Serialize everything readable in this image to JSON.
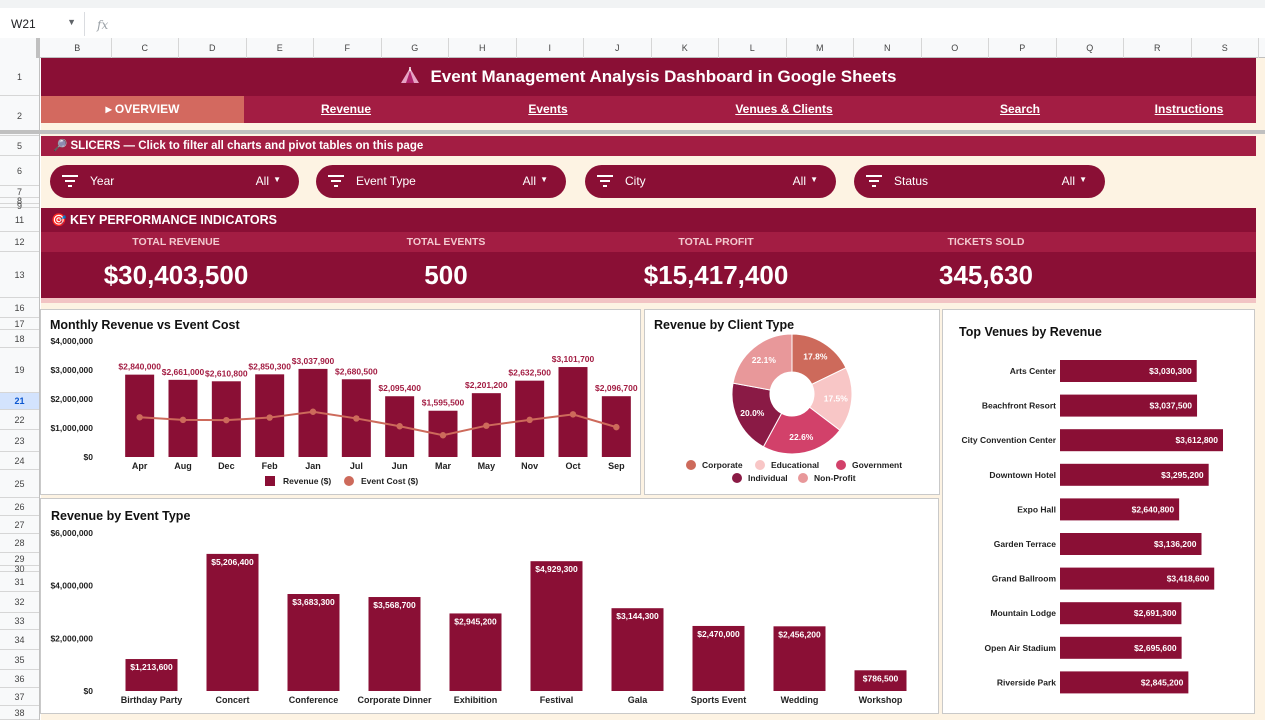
{
  "formula_bar": {
    "cell_ref": "W21",
    "fx_label": "fx"
  },
  "columns": [
    "B",
    "C",
    "D",
    "E",
    "F",
    "G",
    "H",
    "I",
    "J",
    "K",
    "L",
    "M",
    "N",
    "O",
    "P",
    "Q",
    "R",
    "S"
  ],
  "rows": [
    "1",
    "2",
    "5",
    "6",
    "7",
    "8",
    "9",
    "11",
    "12",
    "13",
    "16",
    "17",
    "18",
    "19",
    "21",
    "22",
    "23",
    "24",
    "25",
    "26",
    "27",
    "28",
    "29",
    "30",
    "31",
    "32",
    "33",
    "34",
    "35",
    "36",
    "37",
    "38"
  ],
  "selected_row": "21",
  "title": "Event Management Analysis Dashboard in Google Sheets",
  "nav": {
    "tabs": [
      {
        "label": "▸  OVERVIEW",
        "active": true
      },
      {
        "label": "Revenue"
      },
      {
        "label": "Events"
      },
      {
        "label": "Venues & Clients"
      },
      {
        "label": "Search"
      },
      {
        "label": "Instructions"
      }
    ]
  },
  "slicers": {
    "header": "SLICERS — Click to filter all charts and pivot tables on this page",
    "items": [
      {
        "label": "Year",
        "value": "All"
      },
      {
        "label": "Event Type",
        "value": "All"
      },
      {
        "label": "City",
        "value": "All"
      },
      {
        "label": "Status",
        "value": "All"
      }
    ]
  },
  "kpi": {
    "header": "KEY PERFORMANCE INDICATORS",
    "items": [
      {
        "label": "TOTAL REVENUE",
        "value": "$30,403,500"
      },
      {
        "label": "TOTAL EVENTS",
        "value": "500"
      },
      {
        "label": "TOTAL PROFIT",
        "value": "$15,417,400"
      },
      {
        "label": "TICKETS SOLD",
        "value": "345,630"
      }
    ]
  },
  "colors": {
    "primary": "#8a0f35",
    "secondary": "#a31d43",
    "accent": "#d3695f",
    "background": "#fdf3e3"
  },
  "chart_data": [
    {
      "type": "bar",
      "title": "Monthly Revenue vs Event Cost",
      "categories": [
        "Apr",
        "Aug",
        "Dec",
        "Feb",
        "Jan",
        "Jul",
        "Jun",
        "Mar",
        "May",
        "Nov",
        "Oct",
        "Sep"
      ],
      "series": [
        {
          "name": "Revenue ($)",
          "values": [
            2840000,
            2661000,
            2610800,
            2850300,
            3037900,
            2680500,
            2095400,
            1595500,
            2201200,
            2632500,
            3101700,
            2096700
          ],
          "labels": [
            "$2,840,000",
            "$2,661,000",
            "$2,610,800",
            "$2,850,300",
            "$3,037,900",
            "$2,680,500",
            "$2,095,400",
            "$1,595,500",
            "$2,201,200",
            "$2,632,500",
            "$3,101,700",
            "$2,096,700"
          ]
        },
        {
          "name": "Event Cost ($)",
          "type": "line",
          "values": [
            1370000,
            1280000,
            1270000,
            1360000,
            1560000,
            1330000,
            1060000,
            750000,
            1080000,
            1280000,
            1470000,
            1030000
          ]
        }
      ],
      "yticks": [
        "$4,000,000",
        "$3,000,000",
        "$2,000,000",
        "$1,000,000",
        "$0"
      ],
      "ylim": [
        0,
        4000000
      ]
    },
    {
      "type": "pie",
      "title": "Revenue by Client Type",
      "slices": [
        {
          "name": "Corporate",
          "value": 17.8,
          "label": "17.8%",
          "color": "#cd6a5b"
        },
        {
          "name": "Educational",
          "value": 17.5,
          "label": "17.5%",
          "color": "#f8c6c6"
        },
        {
          "name": "Government",
          "value": 22.6,
          "label": "22.6%",
          "color": "#d2416a"
        },
        {
          "name": "Individual",
          "value": 20.0,
          "label": "20.0%",
          "color": "#8a1a45"
        },
        {
          "name": "Non-Profit",
          "value": 22.1,
          "label": "22.1%",
          "color": "#e8989a"
        }
      ]
    },
    {
      "type": "bar",
      "title": "Revenue by Event Type",
      "categories": [
        "Birthday Party",
        "Concert",
        "Conference",
        "Corporate Dinner",
        "Exhibition",
        "Festival",
        "Gala",
        "Sports Event",
        "Wedding",
        "Workshop"
      ],
      "values": [
        1213600,
        5206400,
        3683300,
        3568700,
        2945200,
        4929300,
        3144300,
        2470000,
        2456200,
        786500
      ],
      "labels": [
        "$1,213,600",
        "$5,206,400",
        "$3,683,300",
        "$3,568,700",
        "$2,945,200",
        "$4,929,300",
        "$3,144,300",
        "$2,470,000",
        "$2,456,200",
        "$786,500"
      ],
      "yticks": [
        "$6,000,000",
        "$4,000,000",
        "$2,000,000",
        "$0"
      ],
      "ylim": [
        0,
        6000000
      ]
    },
    {
      "type": "bar",
      "orientation": "horizontal",
      "title": "Top Venues by Revenue",
      "categories": [
        "Arts Center",
        "Beachfront Resort",
        "City Convention Center",
        "Downtown Hotel",
        "Expo Hall",
        "Garden Terrace",
        "Grand Ballroom",
        "Mountain Lodge",
        "Open Air Stadium",
        "Riverside Park"
      ],
      "values": [
        3030300,
        3037500,
        3612800,
        3295200,
        2640800,
        3136200,
        3418600,
        2691300,
        2695600,
        2845200
      ],
      "labels": [
        "$3,030,300",
        "$3,037,500",
        "$3,612,800",
        "$3,295,200",
        "$2,640,800",
        "$3,136,200",
        "$3,418,600",
        "$2,691,300",
        "$2,695,600",
        "$2,845,200"
      ]
    }
  ]
}
